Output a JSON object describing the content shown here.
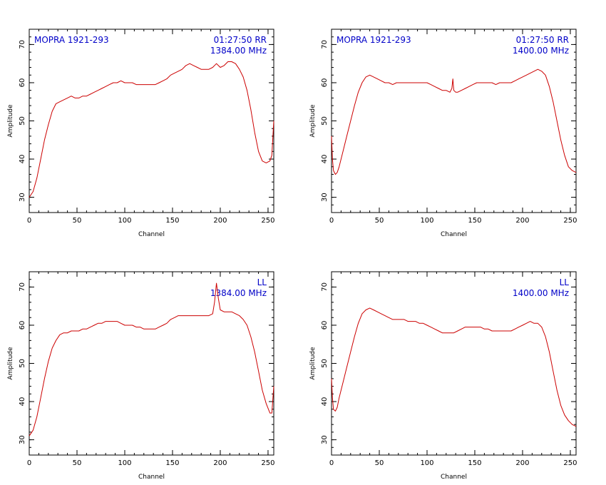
{
  "chart_data": [
    {
      "type": "line",
      "source_label": "MOPRA 1921-293",
      "time_label": "01:27:50 RR",
      "freq_label": "1384.00 MHz",
      "xlabel": "Channel",
      "ylabel": "Amplitude",
      "xlim": [
        0,
        256
      ],
      "ylim": [
        26,
        74
      ],
      "xticks": [
        0,
        50,
        100,
        150,
        200,
        250
      ],
      "yticks": [
        30,
        40,
        50,
        60,
        70
      ],
      "line_color": "#cc0000",
      "x": [
        0,
        4,
        8,
        12,
        16,
        20,
        24,
        28,
        32,
        36,
        40,
        44,
        48,
        52,
        56,
        60,
        64,
        68,
        72,
        76,
        80,
        84,
        88,
        92,
        96,
        100,
        104,
        108,
        112,
        116,
        120,
        124,
        128,
        132,
        136,
        140,
        144,
        148,
        152,
        156,
        160,
        164,
        168,
        172,
        176,
        180,
        184,
        188,
        192,
        196,
        200,
        204,
        208,
        212,
        216,
        220,
        224,
        228,
        232,
        236,
        240,
        244,
        248,
        252,
        254,
        256
      ],
      "y": [
        30,
        31.5,
        35,
        40,
        45,
        49,
        52.5,
        54.5,
        55,
        55.5,
        56,
        56.5,
        56,
        56,
        56.5,
        56.5,
        57,
        57.5,
        58,
        58.5,
        59,
        59.5,
        60,
        60,
        60.5,
        60,
        60,
        60,
        59.5,
        59.5,
        59.5,
        59.5,
        59.5,
        59.5,
        60,
        60.5,
        61,
        62,
        62.5,
        63,
        63.5,
        64.5,
        65,
        64.5,
        64,
        63.5,
        63.5,
        63.5,
        64,
        65,
        64,
        64.5,
        65.5,
        65.5,
        65,
        63.5,
        61.5,
        58,
        53,
        47,
        42,
        39.5,
        39,
        39.5,
        41,
        50
      ]
    },
    {
      "type": "line",
      "source_label": "MOPRA 1921-293",
      "time_label": "01:27:50 RR",
      "freq_label": "1400.00 MHz",
      "xlabel": "Channel",
      "ylabel": "Amplitude",
      "xlim": [
        0,
        256
      ],
      "ylim": [
        26,
        74
      ],
      "xticks": [
        0,
        50,
        100,
        150,
        200,
        250
      ],
      "yticks": [
        30,
        40,
        50,
        60,
        70
      ],
      "line_color": "#cc0000",
      "x": [
        0,
        1,
        2,
        4,
        6,
        8,
        12,
        16,
        20,
        24,
        28,
        32,
        36,
        40,
        44,
        48,
        52,
        56,
        60,
        64,
        68,
        72,
        76,
        80,
        84,
        88,
        92,
        96,
        100,
        104,
        108,
        112,
        116,
        120,
        124,
        126,
        127,
        128,
        130,
        132,
        136,
        140,
        144,
        148,
        152,
        156,
        160,
        164,
        168,
        172,
        176,
        180,
        184,
        188,
        192,
        196,
        200,
        204,
        208,
        212,
        216,
        220,
        224,
        228,
        232,
        236,
        240,
        244,
        248,
        252,
        256
      ],
      "y": [
        46,
        40,
        37,
        36,
        36.5,
        38,
        42,
        46,
        50,
        54,
        57.5,
        60,
        61.5,
        62,
        61.5,
        61,
        60.5,
        60,
        60,
        59.5,
        60,
        60,
        60,
        60,
        60,
        60,
        60,
        60,
        60,
        59.5,
        59,
        58.5,
        58,
        58,
        57.5,
        58.5,
        61,
        58,
        57.5,
        57.5,
        58,
        58.5,
        59,
        59.5,
        60,
        60,
        60,
        60,
        60,
        59.5,
        60,
        60,
        60,
        60,
        60.5,
        61,
        61.5,
        62,
        62.5,
        63,
        63.5,
        63,
        62,
        59,
        55,
        50,
        45,
        41,
        38,
        37,
        36.5
      ]
    },
    {
      "type": "line",
      "source_label": "",
      "time_label": "LL",
      "freq_label": "1384.00 MHz",
      "xlabel": "Channel",
      "ylabel": "Amplitude",
      "xlim": [
        0,
        256
      ],
      "ylim": [
        26,
        74
      ],
      "xticks": [
        0,
        50,
        100,
        150,
        200,
        250
      ],
      "yticks": [
        30,
        40,
        50,
        60,
        70
      ],
      "line_color": "#cc0000",
      "x": [
        0,
        4,
        8,
        12,
        16,
        20,
        24,
        28,
        32,
        36,
        40,
        44,
        48,
        52,
        56,
        60,
        64,
        68,
        72,
        76,
        80,
        84,
        88,
        92,
        96,
        100,
        104,
        108,
        112,
        116,
        120,
        124,
        128,
        132,
        136,
        140,
        144,
        148,
        152,
        156,
        160,
        164,
        168,
        172,
        176,
        180,
        184,
        188,
        192,
        194,
        196,
        198,
        200,
        204,
        208,
        212,
        216,
        220,
        224,
        228,
        232,
        236,
        240,
        244,
        248,
        252,
        254,
        256
      ],
      "y": [
        31,
        32.5,
        36,
        41,
        46,
        50.5,
        54,
        56,
        57.5,
        58,
        58,
        58.5,
        58.5,
        58.5,
        59,
        59,
        59.5,
        60,
        60.5,
        60.5,
        61,
        61,
        61,
        61,
        60.5,
        60,
        60,
        60,
        59.5,
        59.5,
        59,
        59,
        59,
        59,
        59.5,
        60,
        60.5,
        61.5,
        62,
        62.5,
        62.5,
        62.5,
        62.5,
        62.5,
        62.5,
        62.5,
        62.5,
        62.5,
        63,
        66,
        71,
        67,
        64,
        63.5,
        63.5,
        63.5,
        63,
        62.5,
        61.5,
        60,
        57,
        53,
        48,
        43,
        39.5,
        37,
        37,
        44
      ]
    },
    {
      "type": "line",
      "source_label": "",
      "time_label": "LL",
      "freq_label": "1400.00 MHz",
      "xlabel": "Channel",
      "ylabel": "Amplitude",
      "xlim": [
        0,
        256
      ],
      "ylim": [
        26,
        74
      ],
      "xticks": [
        0,
        50,
        100,
        150,
        200,
        250
      ],
      "yticks": [
        30,
        40,
        50,
        60,
        70
      ],
      "line_color": "#cc0000",
      "x": [
        0,
        1,
        2,
        4,
        6,
        8,
        12,
        16,
        20,
        24,
        28,
        32,
        36,
        40,
        44,
        48,
        52,
        56,
        60,
        64,
        68,
        72,
        76,
        80,
        84,
        88,
        92,
        96,
        100,
        104,
        108,
        112,
        116,
        120,
        124,
        128,
        132,
        136,
        140,
        144,
        148,
        152,
        156,
        160,
        164,
        168,
        172,
        176,
        180,
        184,
        188,
        192,
        196,
        200,
        204,
        208,
        212,
        216,
        220,
        224,
        228,
        232,
        236,
        240,
        244,
        248,
        252,
        256
      ],
      "y": [
        46,
        41,
        38,
        37.5,
        38.5,
        41,
        45,
        49,
        53,
        57,
        60.5,
        63,
        64,
        64.5,
        64,
        63.5,
        63,
        62.5,
        62,
        61.5,
        61.5,
        61.5,
        61.5,
        61,
        61,
        61,
        60.5,
        60.5,
        60,
        59.5,
        59,
        58.5,
        58,
        58,
        58,
        58,
        58.5,
        59,
        59.5,
        59.5,
        59.5,
        59.5,
        59.5,
        59,
        59,
        58.5,
        58.5,
        58.5,
        58.5,
        58.5,
        58.5,
        59,
        59.5,
        60,
        60.5,
        61,
        60.5,
        60.5,
        59.5,
        57,
        53,
        48,
        43,
        39,
        36.5,
        35,
        34,
        33.5
      ]
    }
  ]
}
